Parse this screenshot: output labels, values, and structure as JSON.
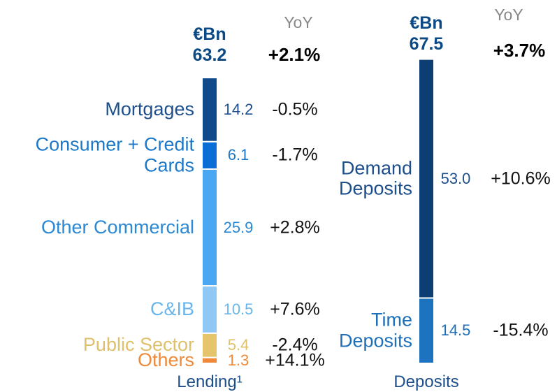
{
  "chart_data": [
    {
      "type": "stacked_bar",
      "unit": "€Bn",
      "total": 63.2,
      "yoy_header": "YoY",
      "total_yoy": "+2.1%",
      "label": "Lending¹",
      "series": [
        {
          "name": "Mortgages",
          "color": "#114a8b",
          "text_color": "#1d4f8c",
          "values": [
            14.2
          ],
          "yoy": "-0.5%"
        },
        {
          "name": "Consumer + Credit Cards",
          "color": "#0a6ed6",
          "text_color": "#1e78c8",
          "values": [
            6.1
          ],
          "yoy": "-1.7%"
        },
        {
          "name": "Other Commercial",
          "color": "#49a7f4",
          "text_color": "#2a88d4",
          "values": [
            25.9
          ],
          "yoy": "+2.8%"
        },
        {
          "name": "C&IB",
          "color": "#8fc8f4",
          "text_color": "#6ab6ec",
          "values": [
            10.5
          ],
          "yoy": "+7.6%"
        },
        {
          "name": "Public Sector",
          "color": "#e6c46c",
          "text_color": "#e0c06a",
          "values": [
            5.4
          ],
          "yoy": "-2.4%"
        },
        {
          "name": "Others",
          "color": "#f0883a",
          "text_color": "#ee8a3a",
          "values": [
            1.3
          ],
          "yoy": "+14.1%"
        }
      ]
    },
    {
      "type": "stacked_bar",
      "unit": "€Bn",
      "total": 67.5,
      "yoy_header": "YoY",
      "total_yoy": "+3.7%",
      "label": "Deposits",
      "series": [
        {
          "name": "Demand Deposits",
          "color": "#0c3d73",
          "text_color": "#1d4f8c",
          "values": [
            53.0
          ],
          "value_labels": [
            "53.0"
          ],
          "yoy": "+10.6%"
        },
        {
          "name": "Time Deposits",
          "color": "#1e73be",
          "text_color": "#1e6fb8",
          "values": [
            14.5
          ],
          "value_labels": [
            "14.5"
          ],
          "yoy": "-15.4%"
        }
      ]
    }
  ]
}
